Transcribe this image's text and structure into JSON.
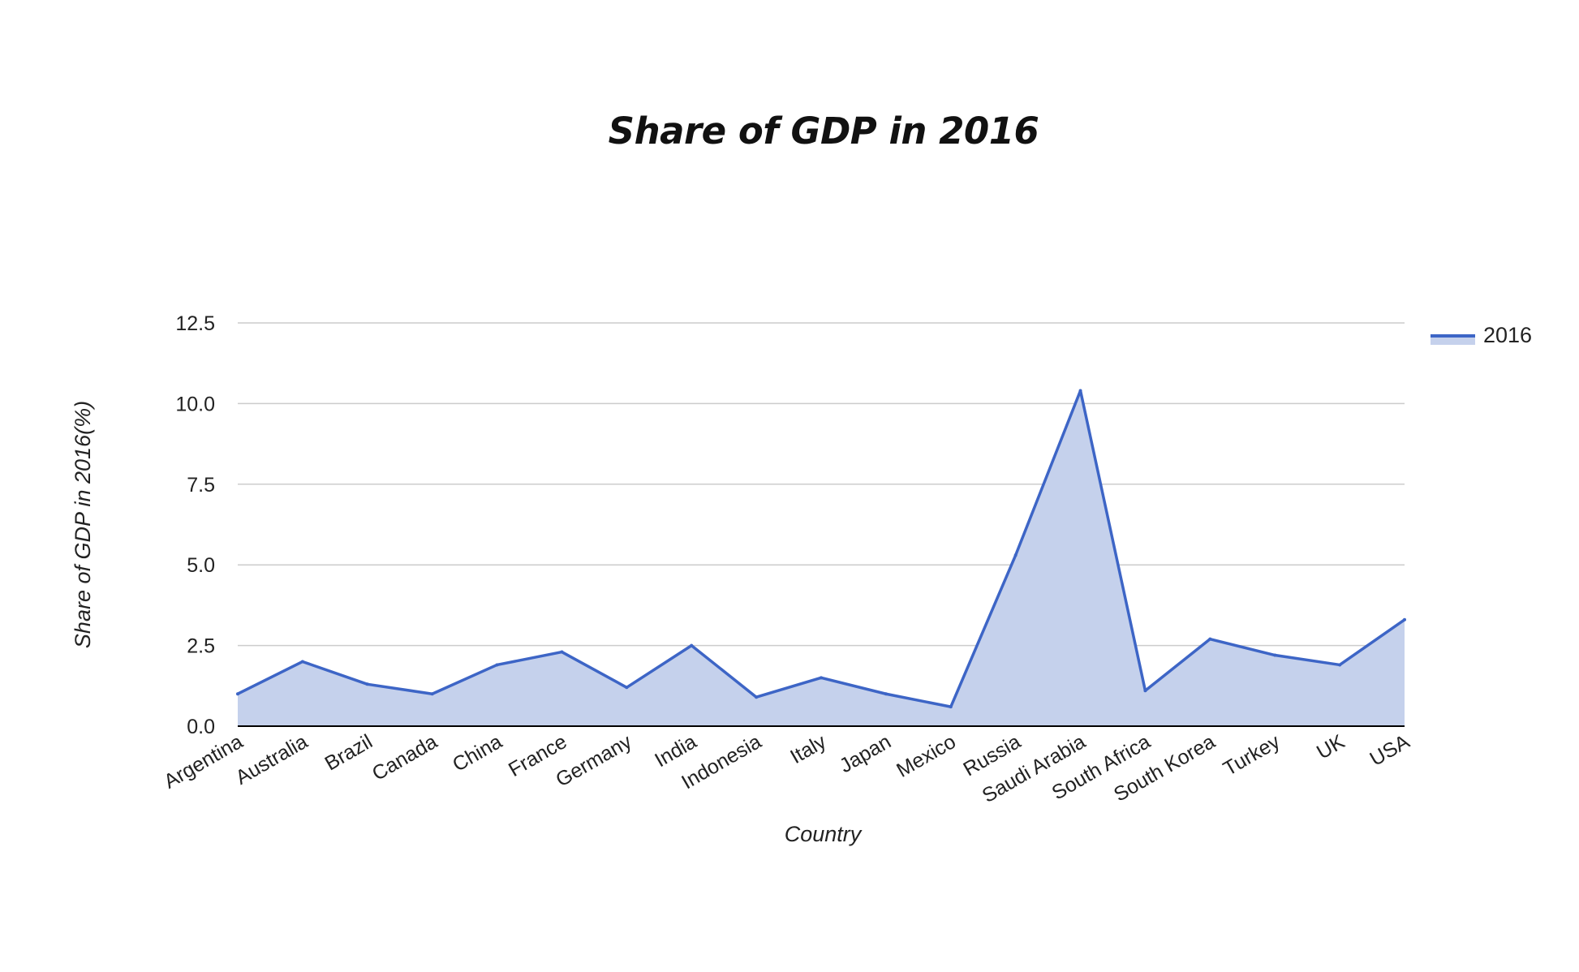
{
  "chart_data": {
    "type": "area",
    "title": "Share of GDP in 2016",
    "xlabel": "Country",
    "ylabel": "Share of GDP in 2016(%)",
    "categories": [
      "Argentina",
      "Australia",
      "Brazil",
      "Canada",
      "China",
      "France",
      "Germany",
      "India",
      "Indonesia",
      "Italy",
      "Japan",
      "Mexico",
      "Russia",
      "Saudi Arabia",
      "South Africa",
      "South Korea",
      "Turkey",
      "UK",
      "USA"
    ],
    "series": [
      {
        "name": "2016",
        "values": [
          1.0,
          2.0,
          1.3,
          1.0,
          1.9,
          2.3,
          1.2,
          2.5,
          0.9,
          1.5,
          1.0,
          0.6,
          5.3,
          10.4,
          1.1,
          2.7,
          2.2,
          1.9,
          3.3
        ]
      }
    ],
    "ylim": [
      0,
      12.5
    ],
    "yticks": [
      "0.0",
      "2.5",
      "5.0",
      "7.5",
      "10.0",
      "12.5"
    ],
    "grid": true,
    "legend_position": "right",
    "colors": {
      "line": "#3d65c6",
      "fill": "#c5d1ec",
      "grid": "#cccccc",
      "axis": "#000000",
      "text": "#222222"
    }
  }
}
